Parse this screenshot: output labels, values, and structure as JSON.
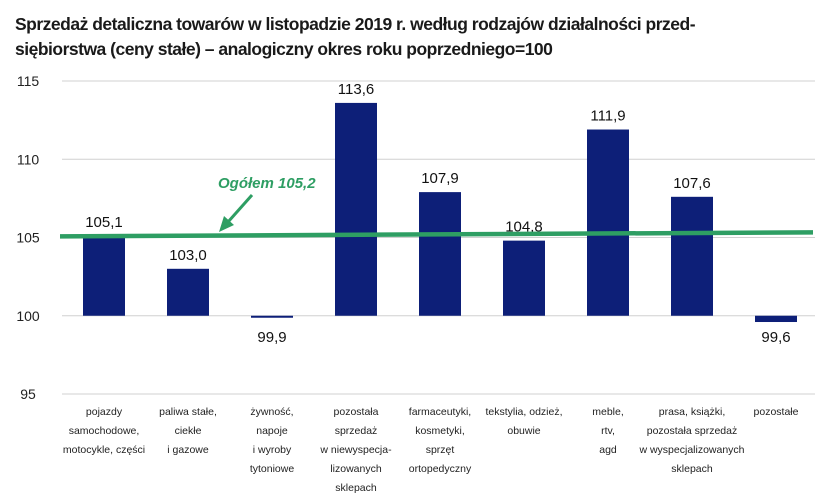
{
  "chart_data": {
    "type": "bar",
    "title": "Sprzedaż detaliczna towarów w listopadzie 2019 r. według rodzajów działalności przed-siębiorstwa (ceny stałe) – analogiczny okres roku poprzedniego=100",
    "title_lines": [
      "Sprzedaż detaliczna towarów w listopadzie 2019 r. według rodzajów działalności przed-",
      "siębiorstwa (ceny stałe) – analogiczny okres roku poprzedniego=100"
    ],
    "categories": [
      [
        "pojazdy",
        "samochodowe,",
        "motocykle, części"
      ],
      [
        "paliwa stałe,",
        "ciekłe",
        "i gazowe"
      ],
      [
        "żywność,",
        "napoje",
        "i wyroby",
        "tytoniowe"
      ],
      [
        "pozostała",
        "sprzedaż",
        "w niewyspecja-",
        "lizowanych",
        "sklepach"
      ],
      [
        "farmaceutyki,",
        "kosmetyki,",
        "sprzęt",
        "ortopedyczny"
      ],
      [
        "tekstylia, odzież,",
        "obuwie"
      ],
      [
        "meble,",
        "rtv,",
        "agd"
      ],
      [
        "prasa, książki,",
        "pozostała sprzedaż",
        "w wyspecjalizowanych",
        "sklepach"
      ],
      [
        "pozostałe"
      ]
    ],
    "values": [
      105.1,
      103.0,
      99.9,
      113.6,
      107.9,
      104.8,
      111.9,
      107.6,
      99.6
    ],
    "value_labels": [
      "105,1",
      "103,0",
      "99,9",
      "113,6",
      "107,9",
      "104,8",
      "111,9",
      "107,6",
      "99,6"
    ],
    "baseline": 100,
    "ylim": [
      95,
      115
    ],
    "yticks": [
      95,
      100,
      105,
      110,
      115
    ],
    "grid": true,
    "reference_line": {
      "value": 105.2,
      "label": "Ogółem 105,2",
      "color": "#2e9e63"
    },
    "bar_color": "#0d1f78"
  }
}
